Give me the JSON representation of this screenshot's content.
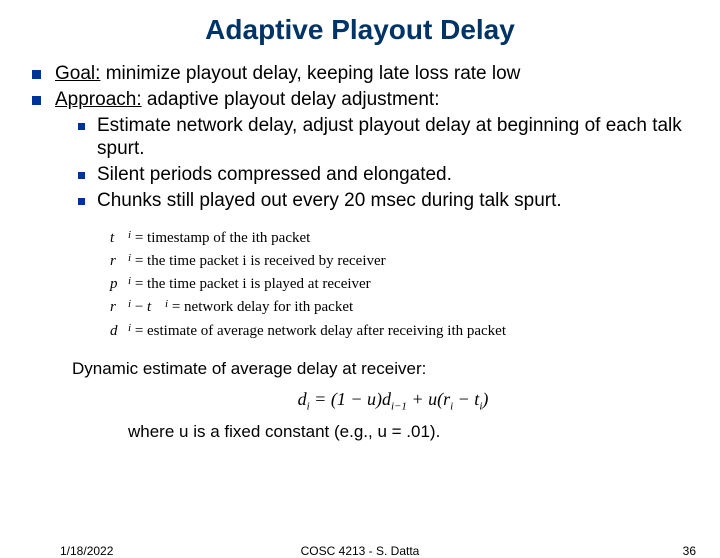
{
  "title": "Adaptive Playout Delay",
  "bullets": {
    "goal_label": "Goal:",
    "goal_text": " minimize playout delay, keeping late loss rate low",
    "approach_label": "Approach:",
    "approach_text": " adaptive playout delay adjustment:",
    "sub1": "Estimate network delay, adjust playout delay at beginning of each talk spurt.",
    "sub2": "Silent periods compressed and elongated.",
    "sub3": "Chunks still played out every 20 msec during talk spurt."
  },
  "defs": {
    "t": "= timestamp of the ith packet",
    "r": "= the time packet i is received by receiver",
    "p": "= the time packet i is played at receiver",
    "rt": "= network delay for ith packet",
    "d": "= estimate of average network delay after receiving ith packet"
  },
  "dyn": "Dynamic estimate of average delay at receiver:",
  "where": "where u is a fixed constant (e.g., u = .01).",
  "footer": {
    "date": "1/18/2022",
    "center": "COSC 4213 - S. Datta",
    "num": "36"
  },
  "colors": {
    "title": "#003366",
    "bullet": "#003399",
    "text": "#000000",
    "background": "#ffffff"
  }
}
